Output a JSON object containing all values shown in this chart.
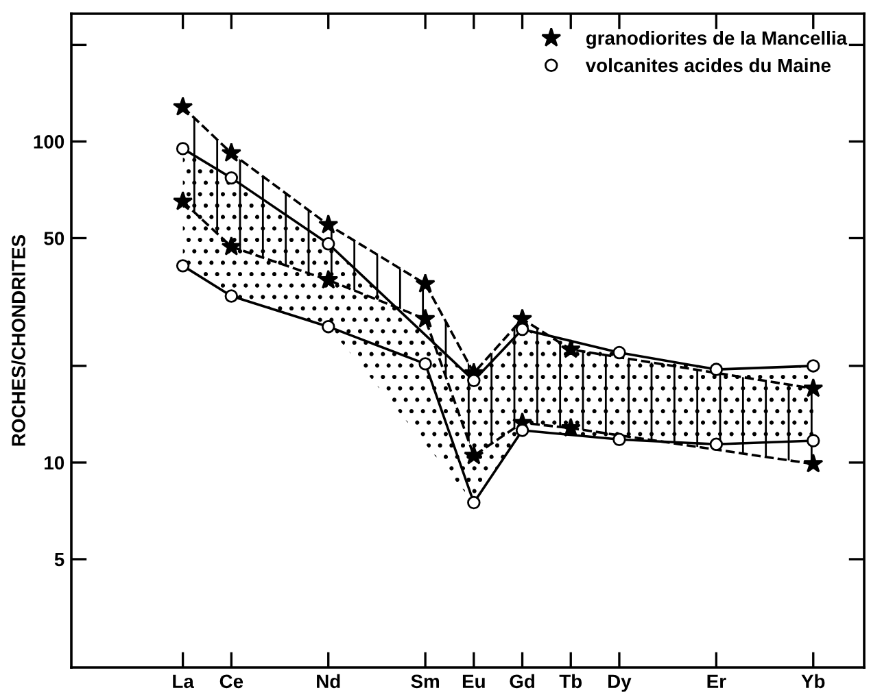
{
  "chart_data": {
    "type": "line",
    "ylabel": "ROCHES/CHONDRITES",
    "log": "y",
    "categories": [
      "La",
      "Ce",
      null,
      "Nd",
      null,
      "Sm",
      "Eu",
      "Gd",
      "Tb",
      "Dy",
      null,
      "Er",
      null,
      "Yb"
    ],
    "ylim": [
      2.3,
      250
    ],
    "yticks": [
      5,
      10,
      {
        "value": 20,
        "label": null
      },
      50,
      100,
      {
        "value": 200,
        "label": null
      }
    ],
    "grid": false,
    "legend": "top right",
    "series": [
      {
        "name": "granodiorites de la Mancellia",
        "color": "#000000",
        "marker": "star",
        "line_style": "dashed",
        "values": [
          128,
          92,
          null,
          55,
          null,
          36,
          19,
          28,
          22.5,
          null,
          null,
          null,
          null,
          17
        ],
        "upper": [
          128,
          92,
          null,
          55,
          null,
          36,
          19,
          28,
          22.5,
          null,
          null,
          null,
          null,
          17
        ],
        "lower": [
          65,
          47,
          null,
          37,
          null,
          28,
          10.5,
          13.3,
          12.8,
          null,
          null,
          null,
          null,
          9.9
        ]
      },
      {
        "color": "#000000",
        "marker": "star",
        "line_style": "dashed",
        "values": [
          65,
          47,
          null,
          37,
          null,
          28,
          10.5,
          13.3,
          12.8,
          null,
          null,
          null,
          null,
          9.9
        ]
      },
      {
        "name": "volcanites acides du Maine",
        "color": "#000000",
        "marker": "circle",
        "line_style": "solid",
        "values": [
          95,
          77,
          null,
          48,
          null,
          null,
          18,
          26,
          null,
          22,
          null,
          19.5,
          null,
          20
        ],
        "upper": [
          95,
          77,
          null,
          48,
          null,
          null,
          18,
          26,
          null,
          22,
          null,
          19.5,
          null,
          20
        ],
        "lower": [
          41,
          33,
          null,
          26.5,
          null,
          null,
          7.5,
          12.6,
          null,
          11.8,
          null,
          11.4,
          null,
          11.7
        ]
      },
      {
        "color": "#000000",
        "marker": "circle",
        "line_style": "solid",
        "values": [
          41,
          33,
          null,
          26.5,
          null,
          20.3,
          7.5,
          12.6,
          null,
          11.8,
          null,
          11.4,
          null,
          11.7
        ]
      }
    ]
  }
}
